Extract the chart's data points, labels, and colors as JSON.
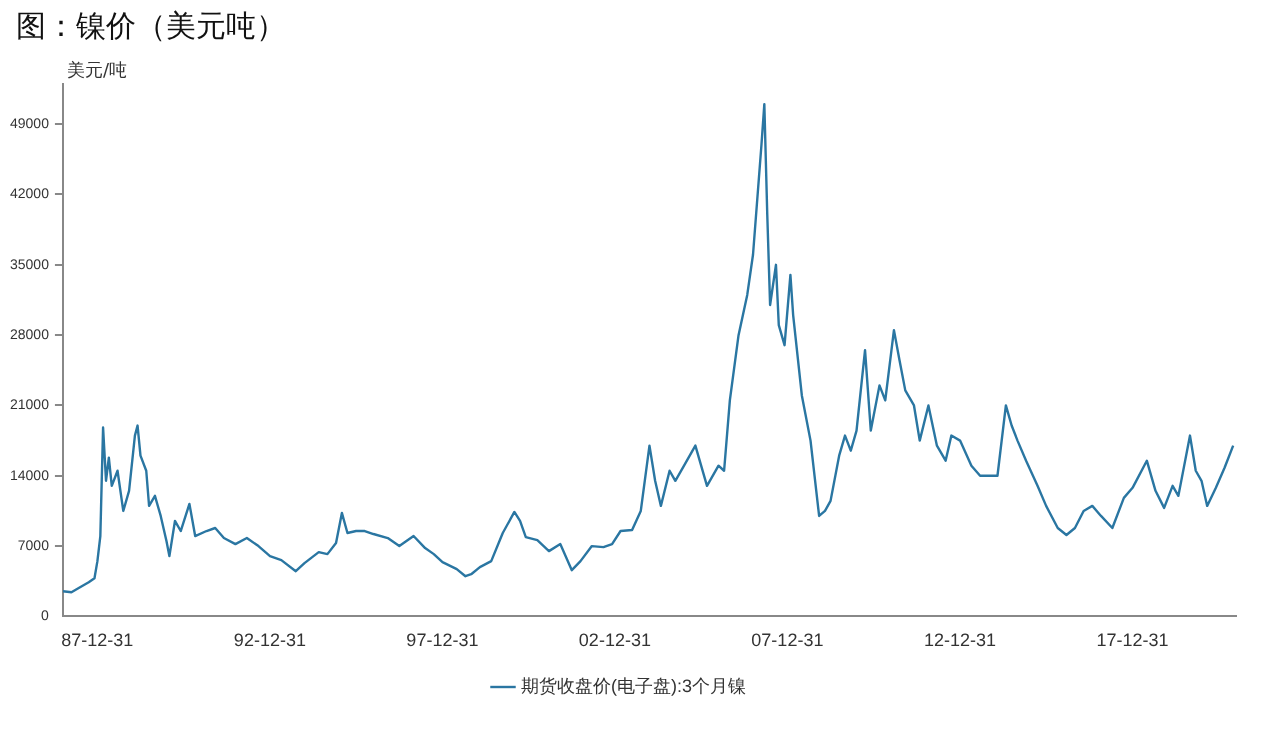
{
  "chart_data": {
    "type": "line",
    "title": "图：镍价（美元吨）",
    "ylabel": "美元/吨",
    "legend": "bottom",
    "grid": false,
    "marker": "none",
    "line_style": "solid",
    "x": [
      "1987-01",
      "1987-04",
      "1987-07",
      "1987-10",
      "1987-12",
      "1988-01",
      "1988-02",
      "1988-03",
      "1988-04",
      "1988-05",
      "1988-06",
      "1988-08",
      "1988-10",
      "1988-12",
      "1989-02",
      "1989-03",
      "1989-04",
      "1989-06",
      "1989-07",
      "1989-09",
      "1989-11",
      "1990-01",
      "1990-02",
      "1990-04",
      "1990-06",
      "1990-09",
      "1990-11",
      "1991-03",
      "1991-06",
      "1991-09",
      "1992-01",
      "1992-05",
      "1992-09",
      "1993-01",
      "1993-05",
      "1993-10",
      "1994-01",
      "1994-06",
      "1994-09",
      "1994-12",
      "1995-02",
      "1995-04",
      "1995-07",
      "1995-10",
      "1996-01",
      "1996-06",
      "1996-10",
      "1997-03",
      "1997-07",
      "1997-10",
      "1998-01",
      "1998-06",
      "1998-09",
      "1998-11",
      "1999-02",
      "1999-06",
      "1999-10",
      "2000-02",
      "2000-04",
      "2000-06",
      "2000-10",
      "2001-02",
      "2001-06",
      "2001-10",
      "2002-01",
      "2002-05",
      "2002-09",
      "2002-12",
      "2003-03",
      "2003-07",
      "2003-10",
      "2004-01",
      "2004-03",
      "2004-05",
      "2004-08",
      "2004-10",
      "2005-01",
      "2005-05",
      "2005-09",
      "2006-01",
      "2006-03",
      "2006-05",
      "2006-08",
      "2006-11",
      "2007-01",
      "2007-04",
      "2007-05",
      "2007-06",
      "2007-07",
      "2007-09",
      "2007-10",
      "2007-12",
      "2008-02",
      "2008-03",
      "2008-06",
      "2008-09",
      "2008-12",
      "2009-02",
      "2009-04",
      "2009-07",
      "2009-09",
      "2009-11",
      "2010-01",
      "2010-04",
      "2010-06",
      "2010-09",
      "2010-11",
      "2011-02",
      "2011-04",
      "2011-06",
      "2011-09",
      "2011-11",
      "2012-02",
      "2012-05",
      "2012-08",
      "2012-10",
      "2013-01",
      "2013-05",
      "2013-08",
      "2013-12",
      "2014-02",
      "2014-05",
      "2014-07",
      "2014-09",
      "2014-12",
      "2015-04",
      "2015-07",
      "2015-11",
      "2016-02",
      "2016-05",
      "2016-08",
      "2016-11",
      "2017-02",
      "2017-06",
      "2017-10",
      "2018-01",
      "2018-06",
      "2018-09",
      "2018-12",
      "2019-03",
      "2019-05",
      "2019-09",
      "2019-11",
      "2020-01",
      "2020-03",
      "2020-06",
      "2020-09",
      "2020-12"
    ],
    "series": [
      {
        "name": "期货收盘价(电子盘):3个月镍",
        "color": "#2a76a2",
        "values": [
          2500,
          2400,
          2900,
          3400,
          3800,
          5500,
          8000,
          18800,
          13500,
          15800,
          13000,
          14500,
          10500,
          12500,
          18000,
          19000,
          16000,
          14500,
          11000,
          12000,
          10000,
          7500,
          6000,
          9500,
          8500,
          11200,
          8000,
          8500,
          8800,
          7800,
          7200,
          7800,
          7000,
          6000,
          5600,
          4500,
          5300,
          6400,
          6200,
          7300,
          10300,
          8300,
          8500,
          8500,
          8200,
          7800,
          7000,
          8000,
          6800,
          6200,
          5400,
          4700,
          4000,
          4200,
          4900,
          5500,
          8300,
          10400,
          9500,
          7900,
          7600,
          6500,
          7200,
          4600,
          5500,
          7000,
          6900,
          7200,
          8500,
          8600,
          10500,
          17000,
          13500,
          11000,
          14500,
          13500,
          15000,
          17000,
          13000,
          15000,
          14500,
          21500,
          28000,
          32000,
          36000,
          47000,
          51000,
          40000,
          31000,
          35000,
          29000,
          27000,
          34000,
          30000,
          22000,
          17500,
          10000,
          10500,
          11500,
          16000,
          18000,
          16500,
          18500,
          26500,
          18500,
          23000,
          21500,
          28500,
          25500,
          22500,
          21000,
          17500,
          21000,
          17000,
          15500,
          18000,
          17500,
          15000,
          14000,
          14000,
          14000,
          21000,
          19000,
          17500,
          15500,
          13000,
          11000,
          8800,
          8100,
          8800,
          10500,
          11000,
          10000,
          8800,
          11800,
          12800,
          15500,
          12500,
          10800,
          13000,
          12000,
          18000,
          14500,
          13500,
          11000,
          12800,
          14800,
          17000
        ]
      }
    ],
    "xlim": [
      "1987-01-01",
      "2020-12-31"
    ],
    "xticks": [
      {
        "value": "1987-12-31",
        "label": "87-12-31"
      },
      {
        "value": "1992-12-31",
        "label": "92-12-31"
      },
      {
        "value": "1997-12-31",
        "label": "97-12-31"
      },
      {
        "value": "2002-12-31",
        "label": "02-12-31"
      },
      {
        "value": "2007-12-31",
        "label": "07-12-31"
      },
      {
        "value": "2012-12-31",
        "label": "12-12-31"
      },
      {
        "value": "2017-12-31",
        "label": "17-12-31"
      }
    ],
    "ylim": [
      0,
      53000
    ],
    "yticks": [
      0,
      7000,
      14000,
      21000,
      28000,
      35000,
      42000,
      49000
    ]
  }
}
